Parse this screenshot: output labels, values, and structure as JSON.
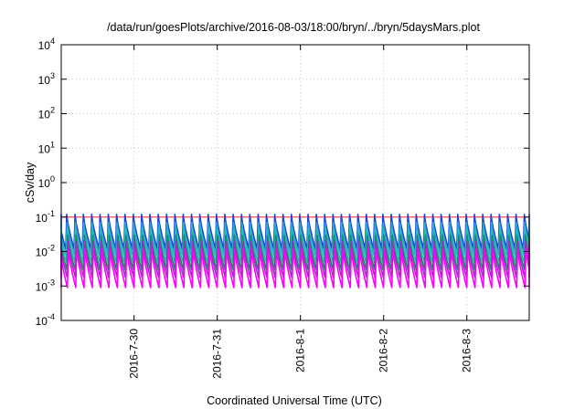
{
  "chart_data": {
    "type": "line",
    "title": "/data/run/goesPlots/archive/2016-08-03/18:00/bryn/../bryn/5daysMars.plot",
    "xlabel": "Coordinated Universal Time (UTC)",
    "ylabel": "cSv/day",
    "yscale": "log",
    "ylim": [
      0.0001,
      10000
    ],
    "y_ticks": [
      {
        "base": "10",
        "exp": "-4"
      },
      {
        "base": "10",
        "exp": "-3"
      },
      {
        "base": "10",
        "exp": "-2"
      },
      {
        "base": "10",
        "exp": "-1"
      },
      {
        "base": "10",
        "exp": "0"
      },
      {
        "base": "10",
        "exp": "1"
      },
      {
        "base": "10",
        "exp": "2"
      },
      {
        "base": "10",
        "exp": "3"
      },
      {
        "base": "10",
        "exp": "4"
      }
    ],
    "xlim": [
      "2016-07-29 03:00",
      "2016-08-03 18:00"
    ],
    "x_ticks": [
      {
        "label": "2016-7-30",
        "time": "2016-07-30 00:00"
      },
      {
        "label": "2016-7-31",
        "time": "2016-07-31 00:00"
      },
      {
        "label": "2016-8-1",
        "time": "2016-08-01 00:00"
      },
      {
        "label": "2016-8-2",
        "time": "2016-08-02 00:00"
      },
      {
        "label": "2016-8-3",
        "time": "2016-08-03 00:00"
      }
    ],
    "grid": true,
    "legend": "none",
    "pattern": {
      "cycle_hours": 2.4,
      "description_values": "sawtooth daily dose rates, sharp rise then decay within each cycle"
    },
    "series": [
      {
        "color": "#ff0000",
        "peak": 0.1,
        "trough": 0.1
      },
      {
        "color": "#1f3fd8",
        "peak": 0.12,
        "trough": 0.012
      },
      {
        "color": "#2aa6d8",
        "peak": 0.07,
        "trough": 0.008
      },
      {
        "color": "#20c0b0",
        "peak": 0.045,
        "trough": 0.005
      },
      {
        "color": "#148a6a",
        "peak": 0.03,
        "trough": 0.003
      },
      {
        "color": "#a030c0",
        "peak": 0.02,
        "trough": 0.0018
      },
      {
        "color": "#ff00ff",
        "peak": 0.012,
        "trough": 0.0009
      }
    ]
  }
}
